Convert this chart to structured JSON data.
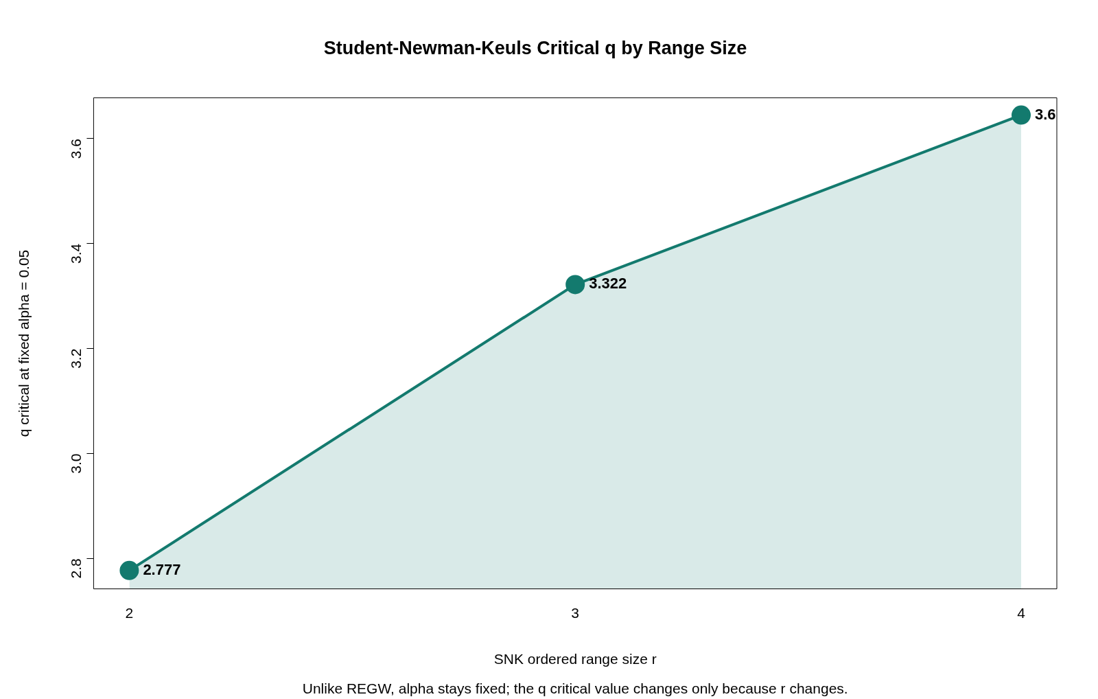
{
  "chart_data": {
    "type": "area",
    "title": "Student-Newman-Keuls Critical q by Range Size",
    "xlabel": "SNK ordered range size r",
    "ylabel": "q critical at fixed alpha = 0.05",
    "annotations": [
      "Unlike REGW, alpha stays fixed; the q critical value changes only because r changes."
    ],
    "x": [
      2,
      3,
      4
    ],
    "series": [
      {
        "color": "#137a6e",
        "values": [
          2.777,
          3.322,
          3.645
        ],
        "value_labels": [
          "2.777",
          "3.322",
          "3.6"
        ]
      }
    ],
    "xlim": [
      1.92,
      4.08
    ],
    "xticks": [
      2,
      3,
      4
    ],
    "ylim": [
      2.742,
      3.678
    ],
    "yticks": [
      2.8,
      {
        "value": 3,
        "label": "3.0"
      },
      3.2,
      3.4,
      3.6
    ],
    "grid": false,
    "legend": false,
    "marker": "circle",
    "line_style": "solid"
  }
}
